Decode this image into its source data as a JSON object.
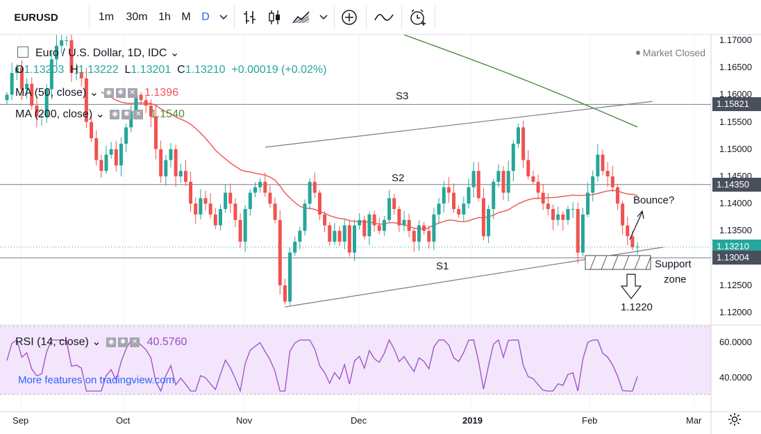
{
  "toolbar": {
    "symbol": "EURUSD",
    "intervals": [
      "1m",
      "30m",
      "1h",
      "M",
      "D"
    ],
    "active_interval": "D",
    "icons": [
      "chevron-down-icon",
      "bar-chart-icon",
      "candlestick-icon",
      "area-chart-icon",
      "chevron-down-icon",
      "add-indicator-icon",
      "compare-icon",
      "alert-icon"
    ]
  },
  "legend": {
    "title": "Euro / U.S. Dollar, 1D, IDC",
    "market_status": "Market Closed",
    "ohlc": {
      "o_label": "O",
      "o": "1.13203",
      "h_label": "H",
      "h": "1.13222",
      "l_label": "L",
      "l": "1.13201",
      "c_label": "C",
      "c": "1.13210",
      "change": "+0.00019 (+0.02%)"
    },
    "ma50": {
      "label": "MA (50, close)",
      "value": "1.1396"
    },
    "ma200": {
      "label": "MA (200, close)",
      "value": "1.1540"
    }
  },
  "rsi": {
    "label": "RSI (14, close)",
    "value": "40.5760",
    "promo": "More features on tradingview.com",
    "axis": [
      "60.0000",
      "40.0000"
    ]
  },
  "price_axis": [
    "1.17000",
    "1.16500",
    "1.16000",
    "1.15500",
    "1.15000",
    "1.14500",
    "1.14000",
    "1.13500",
    "1.13000",
    "1.12500",
    "1.12000"
  ],
  "price_tags": [
    {
      "label": "1.15821",
      "color": "#4a4f5c"
    },
    {
      "label": "1.14350",
      "color": "#4a4f5c"
    },
    {
      "label": "1.13210",
      "color": "#26a69a"
    },
    {
      "label": "1.13004",
      "color": "#4a4f5c"
    }
  ],
  "date_axis": [
    "Sep",
    "Oct",
    "Nov",
    "Dec",
    "2019",
    "Feb",
    "Mar"
  ],
  "annotations": {
    "s3": "S3",
    "s2": "S2",
    "s1": "S1",
    "bounce": "Bounce?",
    "support_line1": "Support",
    "support_line2": "zone",
    "target": "1.1220"
  },
  "colors": {
    "up": "#26a69a",
    "down": "#ef5350",
    "ma50": "#ef5350",
    "ma200": "#4e8a3b",
    "rsi": "#9c4bc7",
    "rsi_bg": "#f3e5fb",
    "accent": "#2962ff"
  },
  "chart_data": {
    "type": "candlestick",
    "symbol": "EURUSD",
    "timeframe": "1D",
    "candles_close": [
      1.16,
      1.164,
      1.165,
      1.161,
      1.162,
      1.158,
      1.156,
      1.156,
      1.161,
      1.1665,
      1.169,
      1.17,
      1.17,
      1.164,
      1.164,
      1.163,
      1.155,
      1.152,
      1.148,
      1.146,
      1.149,
      1.15,
      1.147,
      1.151,
      1.154,
      1.157,
      1.16,
      1.159,
      1.158,
      1.156,
      1.15,
      1.145,
      1.148,
      1.15,
      1.145,
      1.146,
      1.144,
      1.14,
      1.138,
      1.141,
      1.14,
      1.138,
      1.136,
      1.139,
      1.142,
      1.14,
      1.137,
      1.133,
      1.139,
      1.142,
      1.143,
      1.144,
      1.142,
      1.14,
      1.137,
      1.125,
      1.122,
      1.131,
      1.133,
      1.135,
      1.14,
      1.144,
      1.142,
      1.138,
      1.136,
      1.133,
      1.135,
      1.133,
      1.136,
      1.131,
      1.136,
      1.137,
      1.134,
      1.138,
      1.136,
      1.135,
      1.137,
      1.141,
      1.139,
      1.136,
      1.137,
      1.135,
      1.133,
      1.136,
      1.135,
      1.133,
      1.138,
      1.14,
      1.143,
      1.142,
      1.139,
      1.138,
      1.14,
      1.143,
      1.146,
      1.141,
      1.134,
      1.139,
      1.144,
      1.146,
      1.142,
      1.146,
      1.151,
      1.154,
      1.148,
      1.145,
      1.144,
      1.142,
      1.14,
      1.139,
      1.137,
      1.138,
      1.137,
      1.139,
      1.139,
      1.131,
      1.138,
      1.142,
      1.145,
      1.149,
      1.146,
      1.145,
      1.143,
      1.14,
      1.136,
      1.134,
      1.132,
      1.1321
    ],
    "ma50": {
      "name": "MA (50, close)",
      "last": 1.1396
    },
    "ma200": {
      "name": "MA (200, close)",
      "last": 1.154
    },
    "levels": [
      {
        "name": "S3",
        "value": 1.15821
      },
      {
        "name": "S2",
        "value": 1.1435
      },
      {
        "name": "S1",
        "value": 1.13004
      }
    ],
    "last_price": 1.1321,
    "ylim": [
      1.1195,
      1.172
    ],
    "x_labels": [
      "Sep",
      "Oct",
      "Nov",
      "Dec",
      "2019",
      "Feb",
      "Mar"
    ],
    "rsi": {
      "name": "RSI (14, close)",
      "last": 40.576,
      "ylim": [
        30,
        70
      ]
    }
  }
}
